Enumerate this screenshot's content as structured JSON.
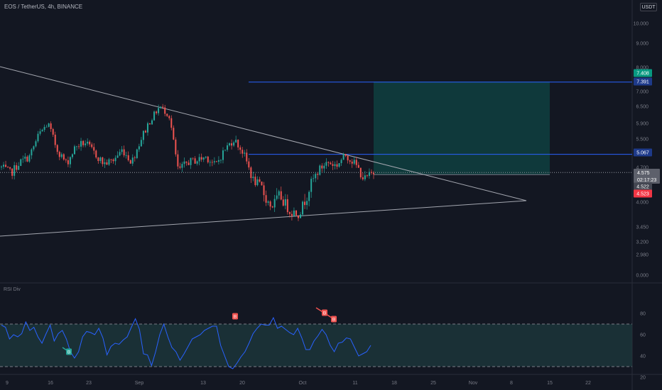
{
  "header": {
    "title": "EOS / TetherUS, 4h, BINANCE"
  },
  "currency_button": {
    "label": "USDT"
  },
  "colors": {
    "background": "#131722",
    "candle_up": "#26a69a",
    "candle_down": "#ef5350",
    "trendline": "#a3a6af",
    "level_line": "#2962ff",
    "target_zone": "#0f3d3e",
    "rsi_line": "#2962ff",
    "rsi_band": "#1e3a3e",
    "bull_label": "#26a69a",
    "bear_label": "#ef5350"
  },
  "price_axis": {
    "ticks": [
      "10.000",
      "9.000",
      "8.000",
      "7.000",
      "6.500",
      "5.900",
      "5.500",
      "4.700",
      "4.250",
      "4.000",
      "3.450",
      "3.200",
      "2.980",
      "0.000"
    ]
  },
  "badges": {
    "target_top": "7.408",
    "level_upper": "7.391",
    "level_mid": "5.067",
    "current_price": "4.575",
    "countdown": "02:17:23",
    "level_low": "4.522",
    "last_low": "4.523"
  },
  "rsi": {
    "label": "RSI Div",
    "ticks": [
      "80",
      "60",
      "40",
      "20"
    ],
    "signals": {
      "bull_1": "B",
      "bear_1": "B",
      "bear_2": "B",
      "bear_3": "B"
    }
  },
  "time_axis": {
    "labels": [
      "9",
      "16",
      "23",
      "Sep",
      "13",
      "20",
      "Oct",
      "11",
      "18",
      "25",
      "Nov",
      "8",
      "15",
      "22"
    ]
  },
  "chart_data": [
    {
      "type": "candlestick",
      "title": "EOS / TetherUS, 4h, BINANCE",
      "y_ticks": [
        "10.000",
        "9.000",
        "8.000",
        "7.000",
        "6.500",
        "5.900",
        "5.500",
        "4.700",
        "4.250",
        "4.000",
        "3.450",
        "3.200",
        "2.980",
        "0.000"
      ],
      "x_ticks": [
        "9",
        "16",
        "23",
        "Sep",
        "13",
        "20",
        "Oct",
        "11",
        "18",
        "25",
        "Nov",
        "8",
        "15",
        "22"
      ],
      "close_path": [
        4.7,
        4.55,
        4.85,
        5.0,
        5.6,
        5.9,
        5.2,
        4.8,
        5.3,
        5.4,
        5.1,
        4.8,
        4.9,
        5.2,
        4.85,
        5.5,
        6.0,
        6.5,
        6.2,
        4.6,
        4.85,
        4.9,
        5.0,
        4.75,
        5.2,
        5.5,
        5.1,
        4.4,
        4.2,
        3.9,
        4.1,
        3.8,
        3.75,
        4.2,
        4.6,
        4.85,
        4.75,
        5.05,
        4.8,
        4.4,
        4.58
      ],
      "levels": [
        7.391,
        5.067,
        4.522
      ],
      "current_price": 4.575,
      "target_zone": {
        "top": 7.408,
        "bottom": 4.522
      },
      "grid": false
    },
    {
      "type": "line",
      "title": "RSI Div",
      "ylim": [
        20,
        80
      ],
      "band": [
        30,
        70
      ],
      "y_ticks": [
        "80",
        "60",
        "40",
        "20"
      ],
      "values": [
        69,
        67,
        56,
        60,
        58,
        61,
        72,
        64,
        67,
        58,
        52,
        61,
        69,
        54,
        61,
        64,
        56,
        44,
        38,
        44,
        58,
        63,
        62,
        60,
        66,
        57,
        41,
        49,
        52,
        51,
        55,
        58,
        67,
        75,
        65,
        42,
        41,
        31,
        44,
        60,
        70,
        58,
        48,
        44,
        36,
        42,
        49,
        56,
        58,
        60,
        64,
        66,
        68,
        68,
        50,
        40,
        30,
        28,
        33,
        39,
        44,
        52,
        61,
        66,
        70,
        69,
        69,
        76,
        66,
        68,
        65,
        62,
        60,
        66,
        57,
        46,
        46,
        54,
        59,
        65,
        60,
        50,
        44,
        52,
        53,
        57,
        56,
        48,
        40,
        42,
        44,
        50
      ]
    }
  ]
}
